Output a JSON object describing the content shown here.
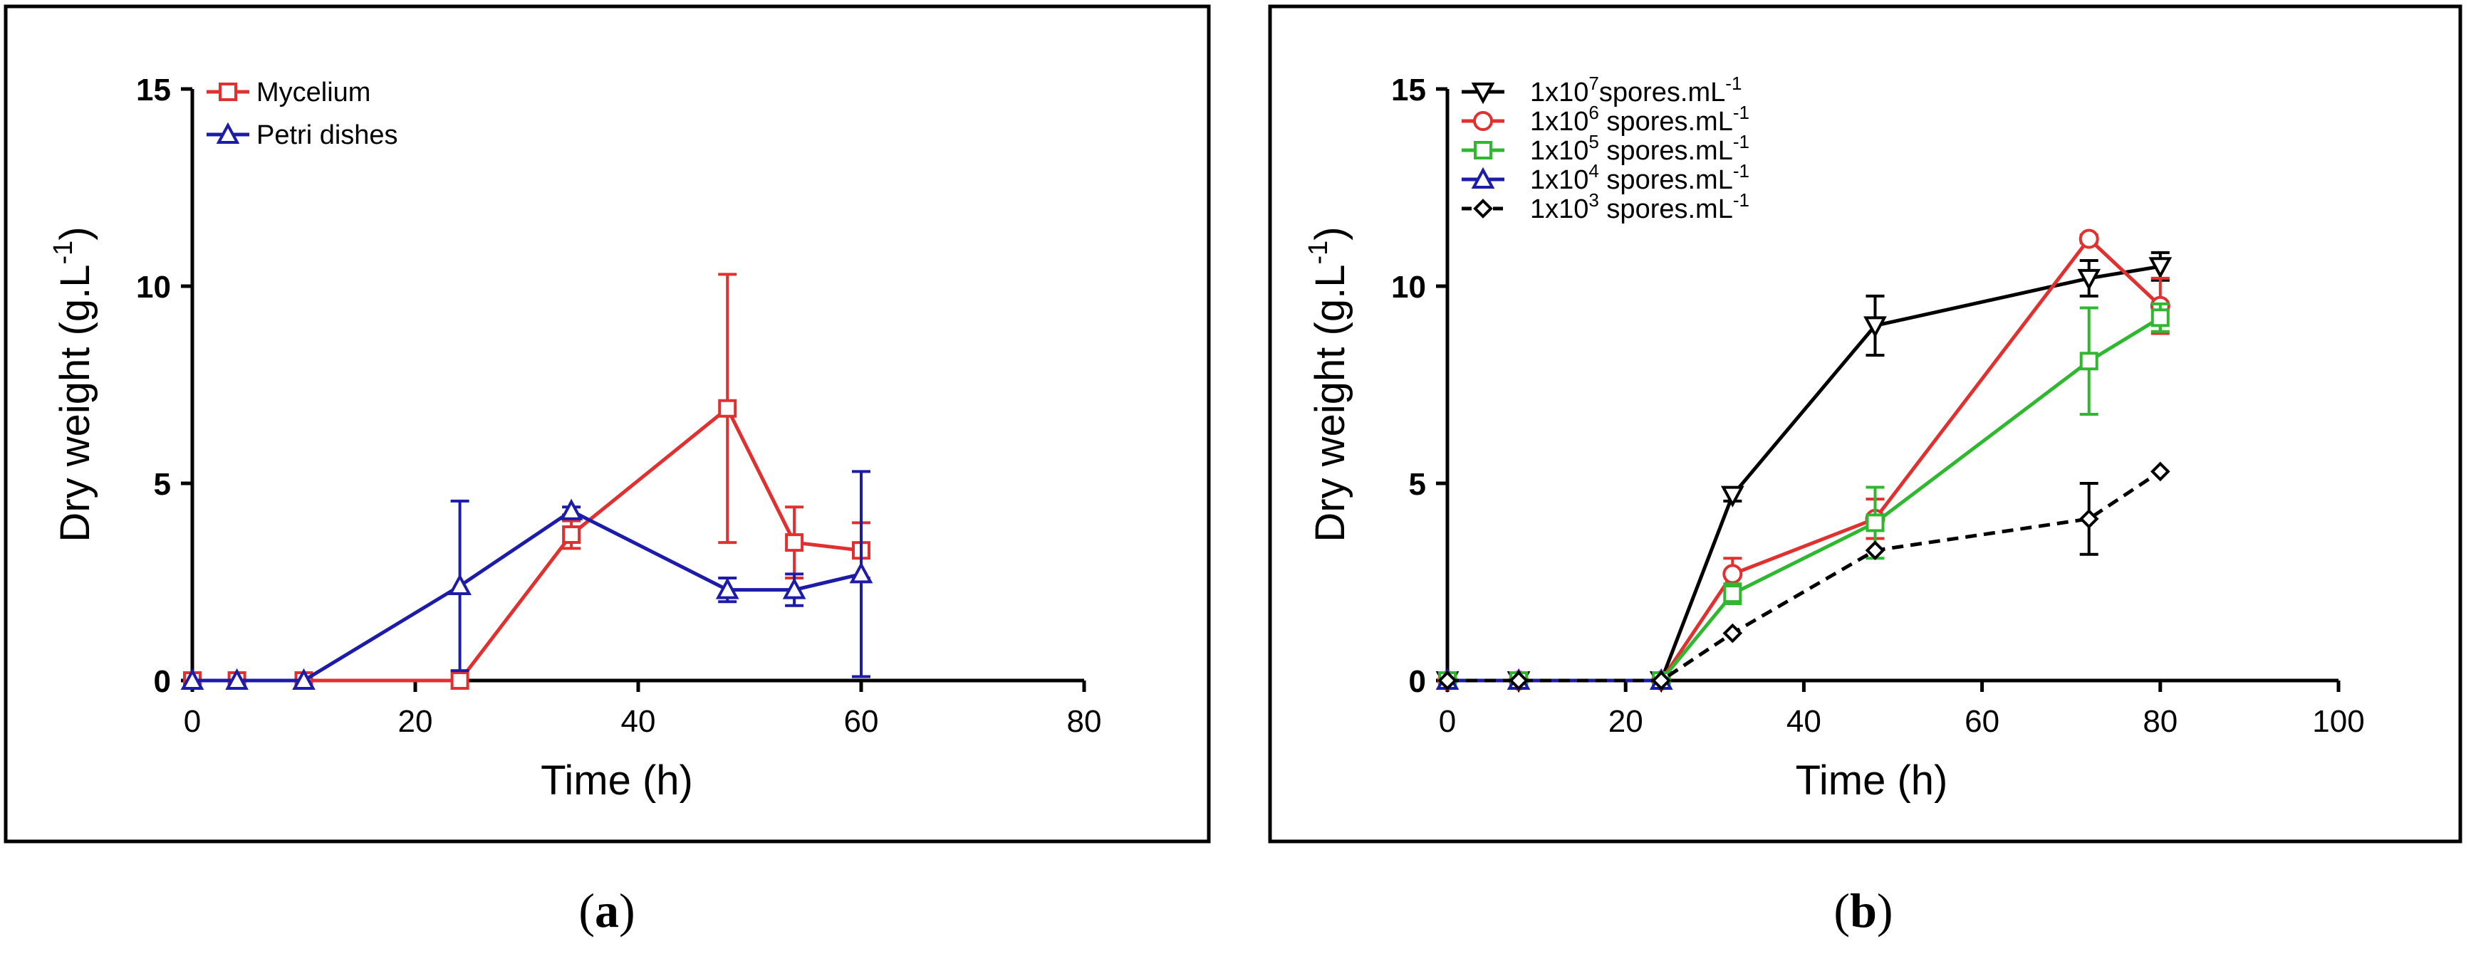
{
  "chart_data": [
    {
      "type": "line",
      "panel": "a",
      "panel_label": "(a)",
      "panel_label_letter": "a",
      "xlabel": "Time (h)",
      "ylabel": "Dry weight (g.L",
      "ylabel_sup": "-1",
      "ylabel_close": ")",
      "xlim": [
        0,
        80
      ],
      "ylim": [
        0,
        15
      ],
      "xticks": [
        0,
        20,
        40,
        60,
        80
      ],
      "yticks": [
        0,
        5,
        10,
        15
      ],
      "legend_position": "top-left",
      "series": [
        {
          "name": "Mycelium",
          "color": "#e03030",
          "marker": "square",
          "dashed": false,
          "x": [
            0,
            4,
            10,
            24,
            34,
            48,
            54,
            60
          ],
          "y": [
            0,
            0,
            0,
            0,
            3.7,
            6.9,
            3.5,
            3.3
          ],
          "err": [
            0,
            0,
            0,
            0,
            0.35,
            3.4,
            0.9,
            0.7
          ]
        },
        {
          "name": "Petri dishes",
          "color": "#1c1ca8",
          "marker": "triangle-up",
          "dashed": false,
          "x": [
            0,
            4,
            10,
            24,
            34,
            48,
            54,
            60
          ],
          "y": [
            0,
            0,
            0,
            2.4,
            4.3,
            2.3,
            2.3,
            2.7
          ],
          "err": [
            0,
            0,
            0,
            2.15,
            0.1,
            0.3,
            0.4,
            2.6
          ]
        }
      ]
    },
    {
      "type": "line",
      "panel": "b",
      "panel_label": "(b)",
      "panel_label_letter": "b",
      "xlabel": "Time (h)",
      "ylabel": "Dry weight (g.L",
      "ylabel_sup": "-1",
      "ylabel_close": ")",
      "xlim": [
        0,
        100
      ],
      "ylim": [
        0,
        15
      ],
      "xticks": [
        0,
        20,
        40,
        60,
        80,
        100
      ],
      "yticks": [
        0,
        5,
        10,
        15
      ],
      "legend_position": "top-left",
      "series": [
        {
          "name": "1x10",
          "name_exp": "7",
          "name_unit": "spores.mL",
          "name_unit_exp": "-1",
          "color": "#000000",
          "marker": "triangle-down",
          "dashed": false,
          "x": [
            0,
            8,
            24,
            32,
            48,
            72,
            80
          ],
          "y": [
            0,
            0,
            0,
            4.7,
            9.0,
            10.2,
            10.5
          ],
          "err": [
            0,
            0,
            0,
            0.15,
            0.75,
            0.45,
            0.35
          ]
        },
        {
          "name": "1x10",
          "name_exp": "6",
          "name_unit": " spores.mL",
          "name_unit_exp": "-1",
          "color": "#e03030",
          "marker": "circle",
          "dashed": false,
          "x": [
            0,
            8,
            24,
            32,
            48,
            72,
            80
          ],
          "y": [
            0,
            0,
            0,
            2.7,
            4.1,
            11.2,
            9.5
          ],
          "err": [
            0,
            0,
            0,
            0.4,
            0.5,
            0.1,
            0.7
          ]
        },
        {
          "name": "1x10",
          "name_exp": "5",
          "name_unit": " spores.mL",
          "name_unit_exp": "-1",
          "color": "#2fb82f",
          "marker": "square",
          "dashed": false,
          "x": [
            0,
            8,
            24,
            32,
            48,
            72,
            80
          ],
          "y": [
            0,
            0,
            0,
            2.2,
            4.0,
            8.1,
            9.2
          ],
          "err": [
            0,
            0,
            0,
            0.25,
            0.9,
            1.35,
            0.35
          ]
        },
        {
          "name": "1x10",
          "name_exp": "4",
          "name_unit": " spores.mL",
          "name_unit_exp": "-1",
          "color": "#1c1ca8",
          "marker": "triangle-up",
          "dashed": false,
          "x": [
            0,
            8,
            24
          ],
          "y": [
            0,
            0,
            0
          ],
          "err": [
            0,
            0,
            0
          ]
        },
        {
          "name": "1x10",
          "name_exp": "3",
          "name_unit": " spores.mL",
          "name_unit_exp": "-1",
          "color": "#000000",
          "marker": "diamond",
          "dashed": true,
          "x": [
            0,
            8,
            24,
            32,
            48,
            72,
            80
          ],
          "y": [
            0,
            0,
            0,
            1.2,
            3.3,
            4.1,
            5.3
          ],
          "err": [
            0,
            0,
            0,
            0,
            0,
            0.9,
            0
          ]
        }
      ]
    }
  ]
}
